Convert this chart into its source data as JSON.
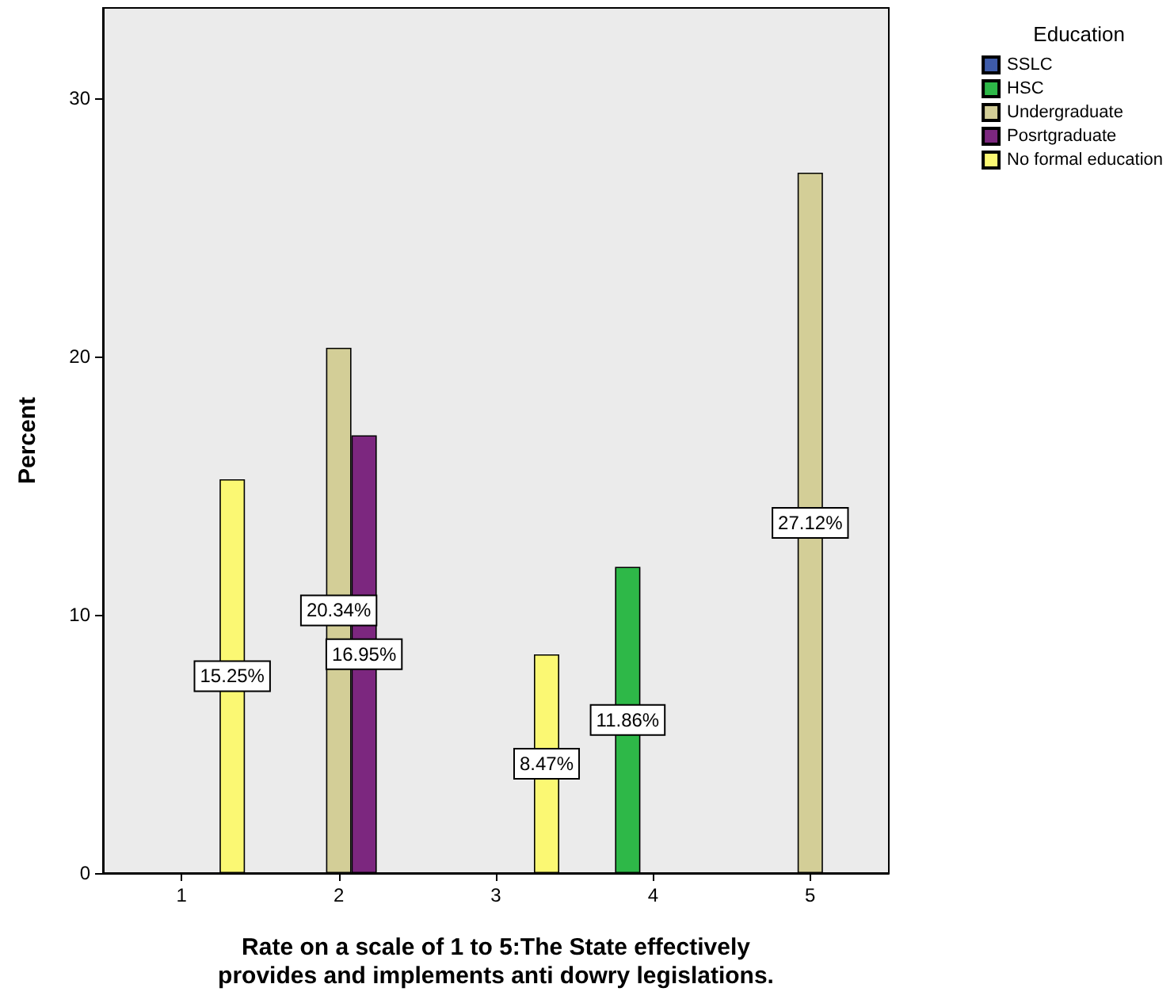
{
  "chart_data": {
    "type": "bar",
    "xlabel": "Rate on a scale of 1 to 5:The State effectively\nprovides and implements anti dowry legislations.",
    "ylabel": "Percent",
    "legend_title": "Education",
    "categories": [
      "1",
      "2",
      "3",
      "4",
      "5"
    ],
    "series": [
      {
        "name": "SSLC",
        "color": "#3e5ba9",
        "values": [
          null,
          null,
          null,
          null,
          null
        ]
      },
      {
        "name": "HSC",
        "color": "#2eb848",
        "values": [
          null,
          null,
          null,
          11.86,
          null
        ],
        "value_labels": [
          null,
          null,
          null,
          "11.86%",
          null
        ]
      },
      {
        "name": "Undergraduate",
        "color": "#d3ce97",
        "values": [
          null,
          20.34,
          null,
          null,
          27.12
        ],
        "value_labels": [
          null,
          "20.34%",
          null,
          null,
          "27.12%"
        ]
      },
      {
        "name": "Posrtgraduate",
        "color": "#7c277f",
        "values": [
          null,
          16.95,
          null,
          null,
          null
        ],
        "value_labels": [
          null,
          "16.95%",
          null,
          null,
          null
        ]
      },
      {
        "name": "No formal education",
        "color": "#fbf873",
        "values": [
          15.25,
          null,
          8.47,
          null,
          null
        ],
        "value_labels": [
          "15.25%",
          null,
          "8.47%",
          null,
          null
        ]
      }
    ],
    "ylim": [
      0,
      33.5
    ],
    "yticks": [
      0,
      10,
      20,
      30
    ],
    "grid": false,
    "legend": "top right"
  }
}
